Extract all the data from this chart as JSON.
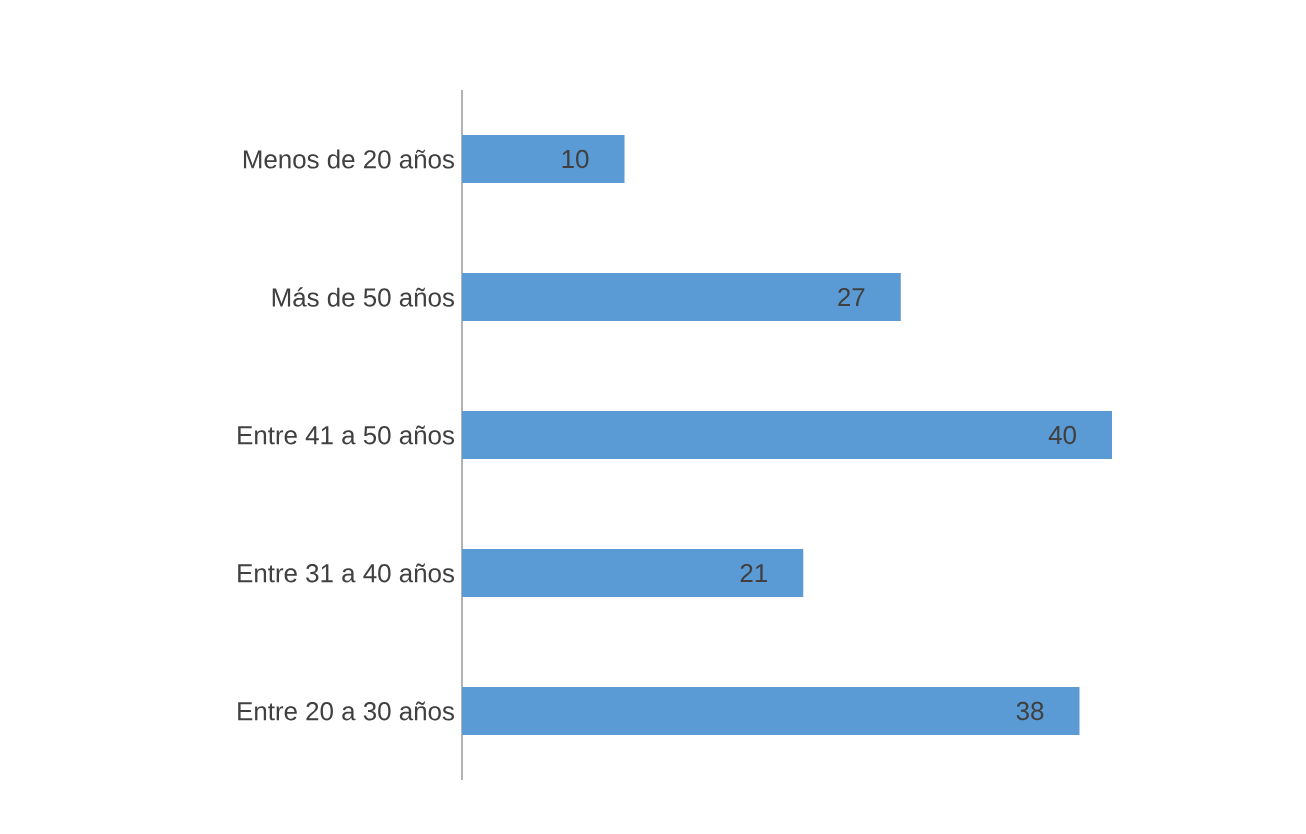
{
  "chart_data": {
    "type": "bar",
    "orientation": "horizontal",
    "categories": [
      "Menos de 20 años",
      "Más de 50 años",
      "Entre 41 a 50 años",
      "Entre 31 a 40 años",
      "Entre 20 a 30 años"
    ],
    "values": [
      10,
      27,
      40,
      21,
      38
    ],
    "color": "#5b9bd5",
    "data_labels": true
  }
}
